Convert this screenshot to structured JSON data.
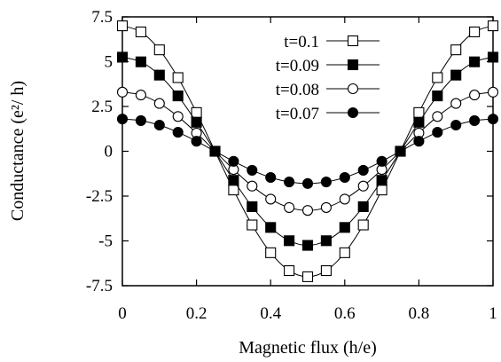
{
  "chart_data": {
    "type": "line",
    "xlabel": "Magnetic flux (h/e)",
    "ylabel": "Conductance (e²/ h)",
    "xlim": [
      0,
      1
    ],
    "ylim": [
      -7.5,
      7.5
    ],
    "x_ticks": [
      0,
      0.2,
      0.4,
      0.6,
      0.8,
      1
    ],
    "x_tick_labels": [
      "0",
      "0.2",
      "0.4",
      "0.6",
      "0.8",
      "1"
    ],
    "y_ticks": [
      7.5,
      5,
      2.5,
      0,
      -2.5,
      -5,
      -7.5
    ],
    "y_tick_labels": [
      "7.5",
      "5",
      "2.5",
      "0",
      "-2.5",
      "-5",
      "-7.5"
    ],
    "grid": false,
    "legend_position": "top-center",
    "x": [
      0,
      0.05,
      0.1,
      0.15,
      0.2,
      0.25,
      0.3,
      0.35,
      0.4,
      0.45,
      0.5,
      0.55,
      0.6,
      0.65,
      0.7,
      0.75,
      0.8,
      0.85,
      0.9,
      0.95,
      1
    ],
    "series": [
      {
        "name": "t=0.1",
        "marker": "open-square",
        "values": [
          7.0,
          6.66,
          5.66,
          4.11,
          2.16,
          0,
          -2.16,
          -4.11,
          -5.66,
          -6.66,
          -7.0,
          -6.66,
          -5.66,
          -4.11,
          -2.16,
          0,
          2.16,
          4.11,
          5.66,
          6.66,
          7.0
        ]
      },
      {
        "name": "t=0.09",
        "marker": "filled-square",
        "values": [
          5.25,
          4.99,
          4.25,
          3.09,
          1.62,
          0,
          -1.62,
          -3.09,
          -4.25,
          -4.99,
          -5.25,
          -4.99,
          -4.25,
          -3.09,
          -1.62,
          0,
          1.62,
          3.09,
          4.25,
          4.99,
          5.25
        ]
      },
      {
        "name": "t=0.08",
        "marker": "open-circle",
        "values": [
          3.3,
          3.14,
          2.67,
          1.94,
          1.02,
          0,
          -1.02,
          -1.94,
          -2.67,
          -3.14,
          -3.3,
          -3.14,
          -2.67,
          -1.94,
          -1.02,
          0,
          1.02,
          1.94,
          2.67,
          3.14,
          3.3
        ]
      },
      {
        "name": "t=0.07",
        "marker": "filled-circle",
        "values": [
          1.8,
          1.71,
          1.46,
          1.06,
          0.56,
          0,
          -0.56,
          -1.06,
          -1.46,
          -1.71,
          -1.8,
          -1.71,
          -1.46,
          -1.06,
          -0.56,
          0,
          0.56,
          1.06,
          1.46,
          1.71,
          1.8
        ]
      }
    ]
  }
}
